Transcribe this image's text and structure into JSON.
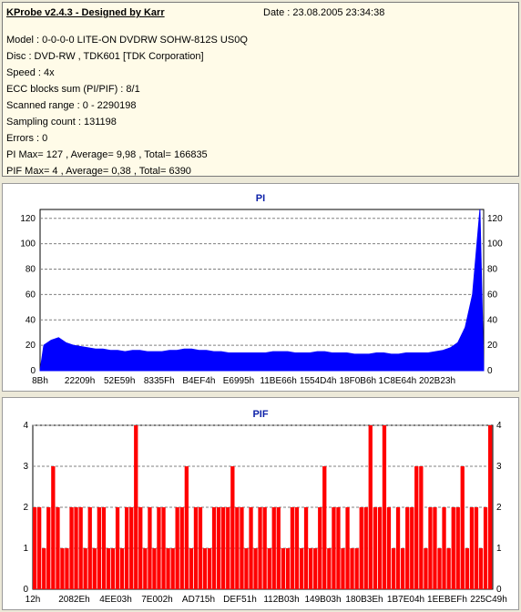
{
  "info": {
    "title": "KProbe v2.4.3 - Designed by Karr",
    "date": "Date : 23.08.2005 23:34:38",
    "rows": [
      "Model : 0-0-0-0 LITE-ON DVDRW SOHW-812S  US0Q",
      "Disc : DVD-RW , TDK601 [TDK Corporation]",
      "Speed : 4x",
      "ECC blocks sum (PI/PIF) : 8/1",
      "Scanned range : 0 - 2290198",
      "Sampling count : 131198",
      "Errors : 0",
      "PI Max= 127 , Average= 9,98 , Total= 166835",
      "PIF Max= 4 , Average= 0,38 , Total= 6390"
    ]
  },
  "colors": {
    "pi": "#0000ff",
    "pif": "#ff0000",
    "title": "#0b1fa8",
    "background": "#ece9d8"
  },
  "chart_data": [
    {
      "type": "area",
      "title": "PI",
      "xlabel": "",
      "ylabel": "",
      "ylim": [
        0,
        127
      ],
      "yticks": [
        0,
        20,
        40,
        60,
        80,
        100,
        120
      ],
      "xticks": [
        "8Bh",
        "22209h",
        "52E59h",
        "8335Fh",
        "B4EF4h",
        "E6995h",
        "11BE66h",
        "1554D4h",
        "18F0B6h",
        "1C8E64h",
        "202B23h"
      ],
      "grid": true,
      "series": [
        {
          "values": [
            20,
            24,
            26,
            22,
            20,
            19,
            18,
            17,
            17,
            16,
            16,
            15,
            16,
            16,
            15,
            15,
            15,
            16,
            16,
            17,
            17,
            16,
            16,
            15,
            15,
            14,
            14,
            14,
            14,
            14,
            14,
            15,
            15,
            15,
            14,
            14,
            14,
            15,
            15,
            14,
            14,
            14,
            13,
            13,
            13,
            14,
            14,
            13,
            13,
            14,
            14,
            14,
            14,
            15,
            16,
            18,
            22,
            34,
            60,
            127
          ]
        }
      ]
    },
    {
      "type": "bar",
      "title": "PIF",
      "xlabel": "",
      "ylabel": "",
      "ylim": [
        0,
        4
      ],
      "yticks": [
        0,
        1,
        2,
        3,
        4
      ],
      "xticks": [
        "12h",
        "2082Eh",
        "4EE03h",
        "7E002h",
        "AD715h",
        "DEF51h",
        "112B03h",
        "149B03h",
        "180B3Eh",
        "1B7E04h",
        "1EEBEFh",
        "225C49h"
      ],
      "grid": true,
      "series": [
        {
          "values": [
            2,
            2,
            1,
            2,
            3,
            2,
            1,
            1,
            2,
            2,
            2,
            1,
            2,
            1,
            2,
            2,
            1,
            1,
            2,
            1,
            2,
            2,
            4,
            2,
            1,
            2,
            1,
            2,
            2,
            1,
            1,
            2,
            2,
            3,
            1,
            2,
            2,
            1,
            1,
            2,
            2,
            2,
            2,
            3,
            2,
            2,
            1,
            2,
            1,
            2,
            2,
            1,
            2,
            2,
            1,
            1,
            2,
            2,
            1,
            2,
            1,
            1,
            2,
            3,
            1,
            2,
            2,
            1,
            2,
            1,
            1,
            2,
            2,
            4,
            2,
            2,
            4,
            2,
            1,
            2,
            1,
            2,
            2,
            3,
            3,
            1,
            2,
            2,
            1,
            2,
            1,
            2,
            2,
            3,
            1,
            2,
            2,
            1,
            2,
            4
          ]
        }
      ]
    }
  ]
}
